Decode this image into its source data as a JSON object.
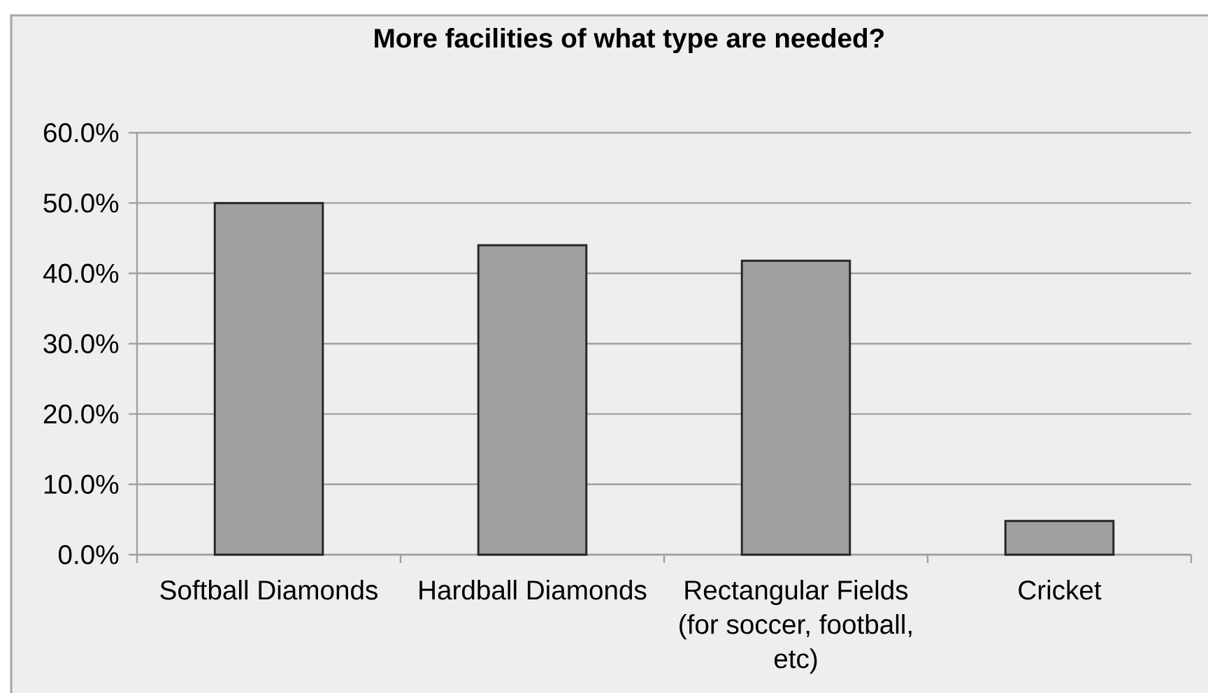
{
  "chart_data": {
    "type": "bar",
    "title": "More facilities of what type are needed?",
    "categories": [
      "Softball Diamonds",
      "Hardball Diamonds",
      "Rectangular Fields (for soccer, football, etc)",
      "Cricket"
    ],
    "values": [
      50.0,
      44.0,
      41.8,
      4.8
    ],
    "color": "#a0a0a0",
    "ylim": [
      0,
      60
    ],
    "yticks": [
      {
        "value": 0,
        "label": "0.0%"
      },
      {
        "value": 10,
        "label": "10.0%"
      },
      {
        "value": 20,
        "label": "20.0%"
      },
      {
        "value": 30,
        "label": "30.0%"
      },
      {
        "value": 40,
        "label": "40.0%"
      },
      {
        "value": 50,
        "label": "50.0%"
      },
      {
        "value": 60,
        "label": "60.0%"
      }
    ],
    "grid": "y"
  }
}
